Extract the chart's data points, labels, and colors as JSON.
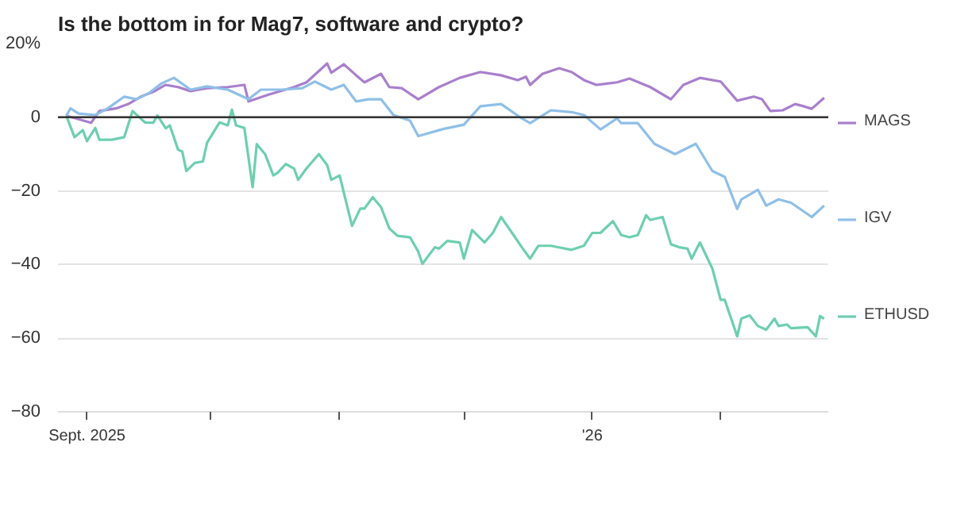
{
  "chart_data": {
    "type": "line",
    "title": "Is the bottom in for Mag7, software and crypto?",
    "ylim": [
      -80,
      20
    ],
    "yticks": [
      {
        "value": 20,
        "label": "20%"
      },
      0,
      -20,
      -40,
      -60,
      -80
    ],
    "xlim": [
      "2025-08-25",
      "2026-02-27"
    ],
    "xticks": [
      {
        "value": "2025-09-01",
        "label": "Sept. 2025"
      },
      {
        "value": "2025-10-01",
        "label": null
      },
      {
        "value": "2025-11-01",
        "label": null
      },
      {
        "value": "2025-12-01",
        "label": null
      },
      {
        "value": "2026-01-01",
        "label": "'26"
      },
      {
        "value": "2026-02-01",
        "label": null
      }
    ],
    "grid": "y",
    "legend": "right",
    "marker": "none",
    "line_style": "solid",
    "ref_lines": [
      {
        "axis": "y",
        "value": 0,
        "color": "#333333"
      }
    ],
    "series": [
      {
        "name": "MAGS",
        "color": "#a97fcc",
        "x": [
          "2025-08-27",
          "2025-08-29",
          "2025-09-02",
          "2025-09-04",
          "2025-09-08",
          "2025-09-11",
          "2025-09-14",
          "2025-09-17",
          "2025-09-20",
          "2025-09-23",
          "2025-09-26",
          "2025-09-30",
          "2025-10-05",
          "2025-10-09",
          "2025-10-10",
          "2025-10-15",
          "2025-10-21",
          "2025-10-24",
          "2025-10-29",
          "2025-10-30",
          "2025-11-02",
          "2025-11-05",
          "2025-11-07",
          "2025-11-11",
          "2025-11-13",
          "2025-11-16",
          "2025-11-20",
          "2025-11-25",
          "2025-11-30",
          "2025-12-05",
          "2025-12-10",
          "2025-12-14",
          "2025-12-16",
          "2025-12-17",
          "2025-12-20",
          "2025-12-24",
          "2025-12-27",
          "2025-12-30",
          "2026-01-02",
          "2026-01-07",
          "2026-01-10",
          "2026-01-15",
          "2026-01-20",
          "2026-01-23",
          "2026-01-27",
          "2026-02-01",
          "2026-02-05",
          "2026-02-09",
          "2026-02-11",
          "2026-02-13",
          "2026-02-16",
          "2026-02-19",
          "2026-02-21",
          "2026-02-23",
          "2026-02-26"
        ],
        "values": [
          0.4,
          -0.2,
          -1.5,
          1.7,
          2.4,
          3.6,
          5.6,
          6.9,
          8.8,
          8.2,
          7.1,
          7.9,
          8.2,
          8.8,
          4.3,
          6.2,
          8.2,
          9.5,
          14.6,
          12.1,
          14.4,
          11.4,
          9.5,
          11.8,
          8.2,
          7.9,
          4.9,
          8.2,
          10.7,
          12.3,
          11.4,
          10.1,
          11,
          8.8,
          11.8,
          13.3,
          12.3,
          10.1,
          8.8,
          9.5,
          10.5,
          8.2,
          4.9,
          8.8,
          10.7,
          9.7,
          4.5,
          5.6,
          4.9,
          1.7,
          1.9,
          3.6,
          3,
          2.3,
          5.3
        ]
      },
      {
        "name": "IGV",
        "color": "#8fbfe8",
        "x": [
          "2025-08-27",
          "2025-08-28",
          "2025-08-30",
          "2025-09-03",
          "2025-09-06",
          "2025-09-10",
          "2025-09-13",
          "2025-09-16",
          "2025-09-19",
          "2025-09-22",
          "2025-09-26",
          "2025-09-30",
          "2025-10-05",
          "2025-10-10",
          "2025-10-13",
          "2025-10-18",
          "2025-10-23",
          "2025-10-26",
          "2025-10-30",
          "2025-11-02",
          "2025-11-05",
          "2025-11-08",
          "2025-11-11",
          "2025-11-14",
          "2025-11-18",
          "2025-11-20",
          "2025-11-26",
          "2025-12-01",
          "2025-12-05",
          "2025-12-10",
          "2025-12-15",
          "2025-12-17",
          "2025-12-22",
          "2025-12-27",
          "2025-12-30",
          "2026-01-03",
          "2026-01-07",
          "2026-01-08",
          "2026-01-12",
          "2026-01-16",
          "2026-01-21",
          "2026-01-26",
          "2026-01-30",
          "2026-02-02",
          "2026-02-05",
          "2026-02-06",
          "2026-02-10",
          "2026-02-12",
          "2026-02-15",
          "2026-02-18",
          "2026-02-23",
          "2026-02-26"
        ],
        "values": [
          0.4,
          2.4,
          1,
          0.6,
          2.4,
          5.6,
          4.9,
          6.6,
          9.2,
          10.7,
          7.5,
          8.4,
          7.5,
          4.9,
          7.5,
          7.5,
          7.9,
          9.7,
          7.5,
          8.8,
          4.3,
          4.9,
          4.9,
          0.6,
          -0.9,
          -5.1,
          -3.2,
          -2,
          3,
          3.6,
          -0.3,
          -1.6,
          1.9,
          1.4,
          0.6,
          -3.3,
          -0.3,
          -1.6,
          -1.6,
          -7.2,
          -10,
          -7.2,
          -14.6,
          -16.2,
          -24.9,
          -22.3,
          -19.7,
          -24,
          -22.3,
          -23.2,
          -27.1,
          -24
        ]
      },
      {
        "name": "ETHUSD",
        "color": "#6dcfae",
        "x": [
          "2025-08-27",
          "2025-08-29",
          "2025-08-31",
          "2025-09-01",
          "2025-09-03",
          "2025-09-04",
          "2025-09-07",
          "2025-09-10",
          "2025-09-12",
          "2025-09-15",
          "2025-09-17",
          "2025-09-18",
          "2025-09-20",
          "2025-09-21",
          "2025-09-23",
          "2025-09-24",
          "2025-09-25",
          "2025-09-27",
          "2025-09-29",
          "2025-09-30",
          "2025-10-03",
          "2025-10-05",
          "2025-10-06",
          "2025-10-07",
          "2025-10-09",
          "2025-10-11",
          "2025-10-12",
          "2025-10-14",
          "2025-10-16",
          "2025-10-17",
          "2025-10-19",
          "2025-10-21",
          "2025-10-22",
          "2025-10-24",
          "2025-10-27",
          "2025-10-29",
          "2025-10-30",
          "2025-11-01",
          "2025-11-04",
          "2025-11-06",
          "2025-11-07",
          "2025-11-09",
          "2025-11-11",
          "2025-11-13",
          "2025-11-15",
          "2025-11-18",
          "2025-11-20",
          "2025-11-21",
          "2025-11-24",
          "2025-11-25",
          "2025-11-27",
          "2025-11-30",
          "2025-12-01",
          "2025-12-03",
          "2025-12-06",
          "2025-12-08",
          "2025-12-10",
          "2025-12-13",
          "2025-12-15",
          "2025-12-17",
          "2025-12-19",
          "2025-12-22",
          "2025-12-27",
          "2025-12-30",
          "2026-01-01",
          "2026-01-03",
          "2026-01-06",
          "2026-01-08",
          "2026-01-10",
          "2026-01-12",
          "2026-01-14",
          "2026-01-15",
          "2026-01-18",
          "2026-01-20",
          "2026-01-22",
          "2026-01-24",
          "2026-01-25",
          "2026-01-27",
          "2026-01-30",
          "2026-02-01",
          "2026-02-02",
          "2026-02-05",
          "2026-02-06",
          "2026-02-08",
          "2026-02-10",
          "2026-02-12",
          "2026-02-14",
          "2026-02-15",
          "2026-02-17",
          "2026-02-18",
          "2026-02-22",
          "2026-02-24",
          "2026-02-25",
          "2026-02-26"
        ],
        "values": [
          0.4,
          -5.4,
          -3.5,
          -6.5,
          -2.9,
          -6.1,
          -6.1,
          -5.4,
          1.7,
          -1.4,
          -1.5,
          0.5,
          -3,
          -2.2,
          -8.8,
          -9.3,
          -14.6,
          -12.4,
          -12,
          -6.9,
          -1.4,
          -2.2,
          2.1,
          -2.2,
          -2.9,
          -19,
          -7.3,
          -10,
          -15.8,
          -15.1,
          -12.7,
          -13.9,
          -17,
          -13.9,
          -10,
          -13,
          -17,
          -15.8,
          -29.5,
          -24.8,
          -24.8,
          -21.7,
          -24.4,
          -30.2,
          -32.2,
          -32.6,
          -36.5,
          -39.8,
          -35.3,
          -35.7,
          -33.6,
          -34,
          -38.4,
          -30.6,
          -34,
          -31.4,
          -27.1,
          -32,
          -35.3,
          -38.4,
          -34.9,
          -34.9,
          -36,
          -34.9,
          -31.4,
          -31.4,
          -28.2,
          -32,
          -32.6,
          -32,
          -26.6,
          -27.9,
          -27.1,
          -34.5,
          -35.3,
          -35.7,
          -38.4,
          -34,
          -41.1,
          -49.6,
          -49.6,
          -59.5,
          -54.7,
          -53.8,
          -56.7,
          -57.7,
          -54.7,
          -56.7,
          -56.3,
          -57.3,
          -57,
          -59.5,
          -54,
          -54.7
        ]
      }
    ]
  }
}
